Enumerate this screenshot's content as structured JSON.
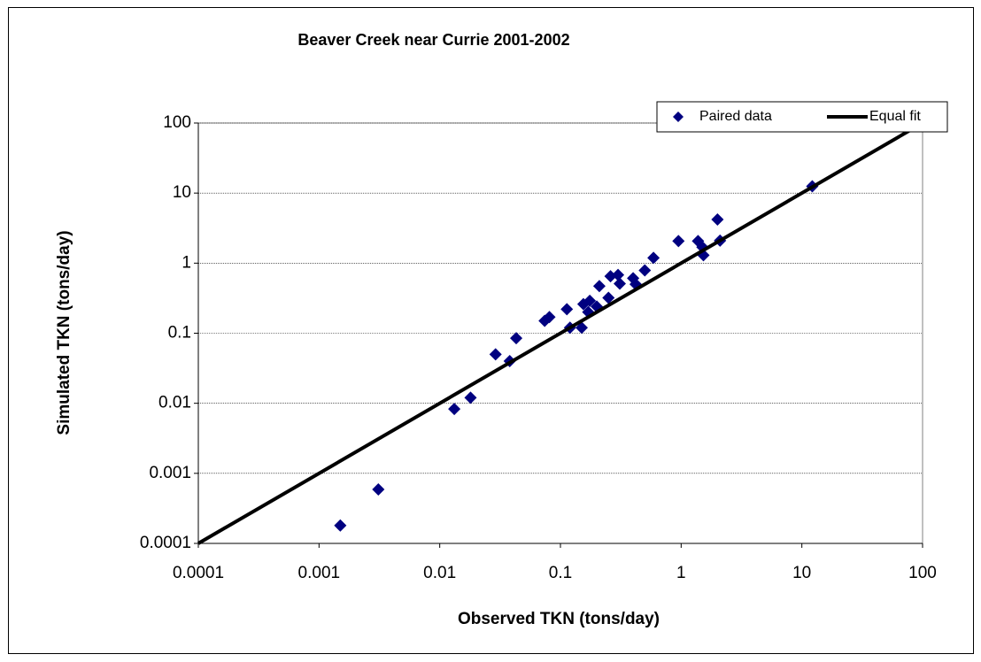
{
  "chart_data": {
    "type": "scatter",
    "title": "Beaver Creek near Currie 2001-2002",
    "x_label": "Observed TKN (tons/day)",
    "y_label": "Simulated TKN (tons/day)",
    "xscale": "log",
    "yscale": "log",
    "xlim": [
      0.0001,
      100
    ],
    "ylim": [
      0.0001,
      100
    ],
    "xticks": [
      0.0001,
      0.001,
      0.01,
      0.1,
      1,
      10,
      100
    ],
    "yticks": [
      0.0001,
      0.001,
      0.01,
      0.1,
      1,
      10,
      100
    ],
    "grid": true,
    "legend": "top-right",
    "series": [
      {
        "name": "Paired data",
        "color": "#000080",
        "mode": "markers",
        "x": [
          0.0015,
          0.0031,
          0.0132,
          0.018,
          0.029,
          0.038,
          0.043,
          0.074,
          0.081,
          0.113,
          0.12,
          0.15,
          0.155,
          0.17,
          0.175,
          0.2,
          0.21,
          0.25,
          0.26,
          0.3,
          0.31,
          0.4,
          0.42,
          0.5,
          0.59,
          0.95,
          1.38,
          1.5,
          1.53,
          2.0,
          2.1,
          12.2
        ],
        "values": [
          0.00018,
          0.00059,
          0.0083,
          0.012,
          0.05,
          0.04,
          0.085,
          0.15,
          0.17,
          0.22,
          0.12,
          0.12,
          0.26,
          0.2,
          0.29,
          0.24,
          0.47,
          0.32,
          0.65,
          0.68,
          0.51,
          0.61,
          0.5,
          0.79,
          1.19,
          2.07,
          2.07,
          1.69,
          1.3,
          4.2,
          2.1,
          12.5
        ]
      },
      {
        "name": "Equal fit",
        "color": "#000000",
        "mode": "line",
        "x": [
          0.0001,
          100
        ],
        "values": [
          0.0001,
          100
        ]
      }
    ]
  }
}
